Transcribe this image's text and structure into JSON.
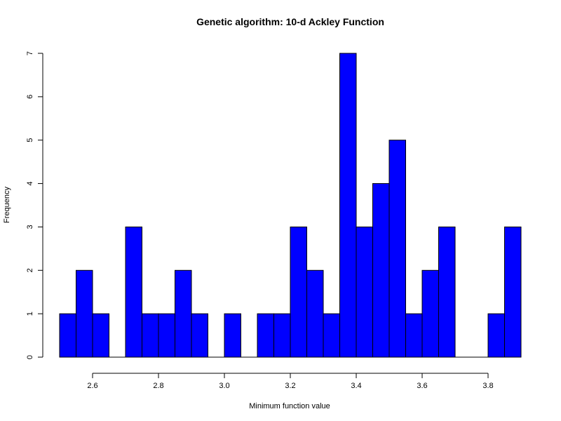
{
  "chart_data": {
    "type": "bar",
    "title": "Genetic algorithm: 10-d Ackley Function",
    "xlabel": "Minimum function value",
    "ylabel": "Frequency",
    "bin_width": 0.05,
    "bins": [
      {
        "x0": 2.5,
        "x1": 2.55,
        "count": 1
      },
      {
        "x0": 2.55,
        "x1": 2.6,
        "count": 2
      },
      {
        "x0": 2.6,
        "x1": 2.65,
        "count": 1
      },
      {
        "x0": 2.65,
        "x1": 2.7,
        "count": 0
      },
      {
        "x0": 2.7,
        "x1": 2.75,
        "count": 3
      },
      {
        "x0": 2.75,
        "x1": 2.8,
        "count": 1
      },
      {
        "x0": 2.8,
        "x1": 2.85,
        "count": 1
      },
      {
        "x0": 2.85,
        "x1": 2.9,
        "count": 2
      },
      {
        "x0": 2.9,
        "x1": 2.95,
        "count": 1
      },
      {
        "x0": 2.95,
        "x1": 3.0,
        "count": 0
      },
      {
        "x0": 3.0,
        "x1": 3.05,
        "count": 1
      },
      {
        "x0": 3.05,
        "x1": 3.1,
        "count": 0
      },
      {
        "x0": 3.1,
        "x1": 3.15,
        "count": 1
      },
      {
        "x0": 3.15,
        "x1": 3.2,
        "count": 1
      },
      {
        "x0": 3.2,
        "x1": 3.25,
        "count": 3
      },
      {
        "x0": 3.25,
        "x1": 3.3,
        "count": 2
      },
      {
        "x0": 3.3,
        "x1": 3.35,
        "count": 1
      },
      {
        "x0": 3.35,
        "x1": 3.4,
        "count": 7
      },
      {
        "x0": 3.4,
        "x1": 3.45,
        "count": 3
      },
      {
        "x0": 3.45,
        "x1": 3.5,
        "count": 4
      },
      {
        "x0": 3.5,
        "x1": 3.55,
        "count": 5
      },
      {
        "x0": 3.55,
        "x1": 3.6,
        "count": 1
      },
      {
        "x0": 3.6,
        "x1": 3.65,
        "count": 2
      },
      {
        "x0": 3.65,
        "x1": 3.7,
        "count": 3
      },
      {
        "x0": 3.7,
        "x1": 3.75,
        "count": 0
      },
      {
        "x0": 3.75,
        "x1": 3.8,
        "count": 0
      },
      {
        "x0": 3.8,
        "x1": 3.85,
        "count": 1
      },
      {
        "x0": 3.85,
        "x1": 3.9,
        "count": 3
      }
    ],
    "xlim": [
      2.5,
      3.9
    ],
    "ylim": [
      0,
      7
    ],
    "xticks": [
      "2.6",
      "2.8",
      "3.0",
      "3.2",
      "3.4",
      "3.6",
      "3.8"
    ],
    "yticks": [
      "0",
      "1",
      "2",
      "3",
      "4",
      "5",
      "6",
      "7"
    ],
    "bar_color": "#0000ff",
    "border_color": "#000000",
    "grid": false,
    "legend": "none"
  }
}
